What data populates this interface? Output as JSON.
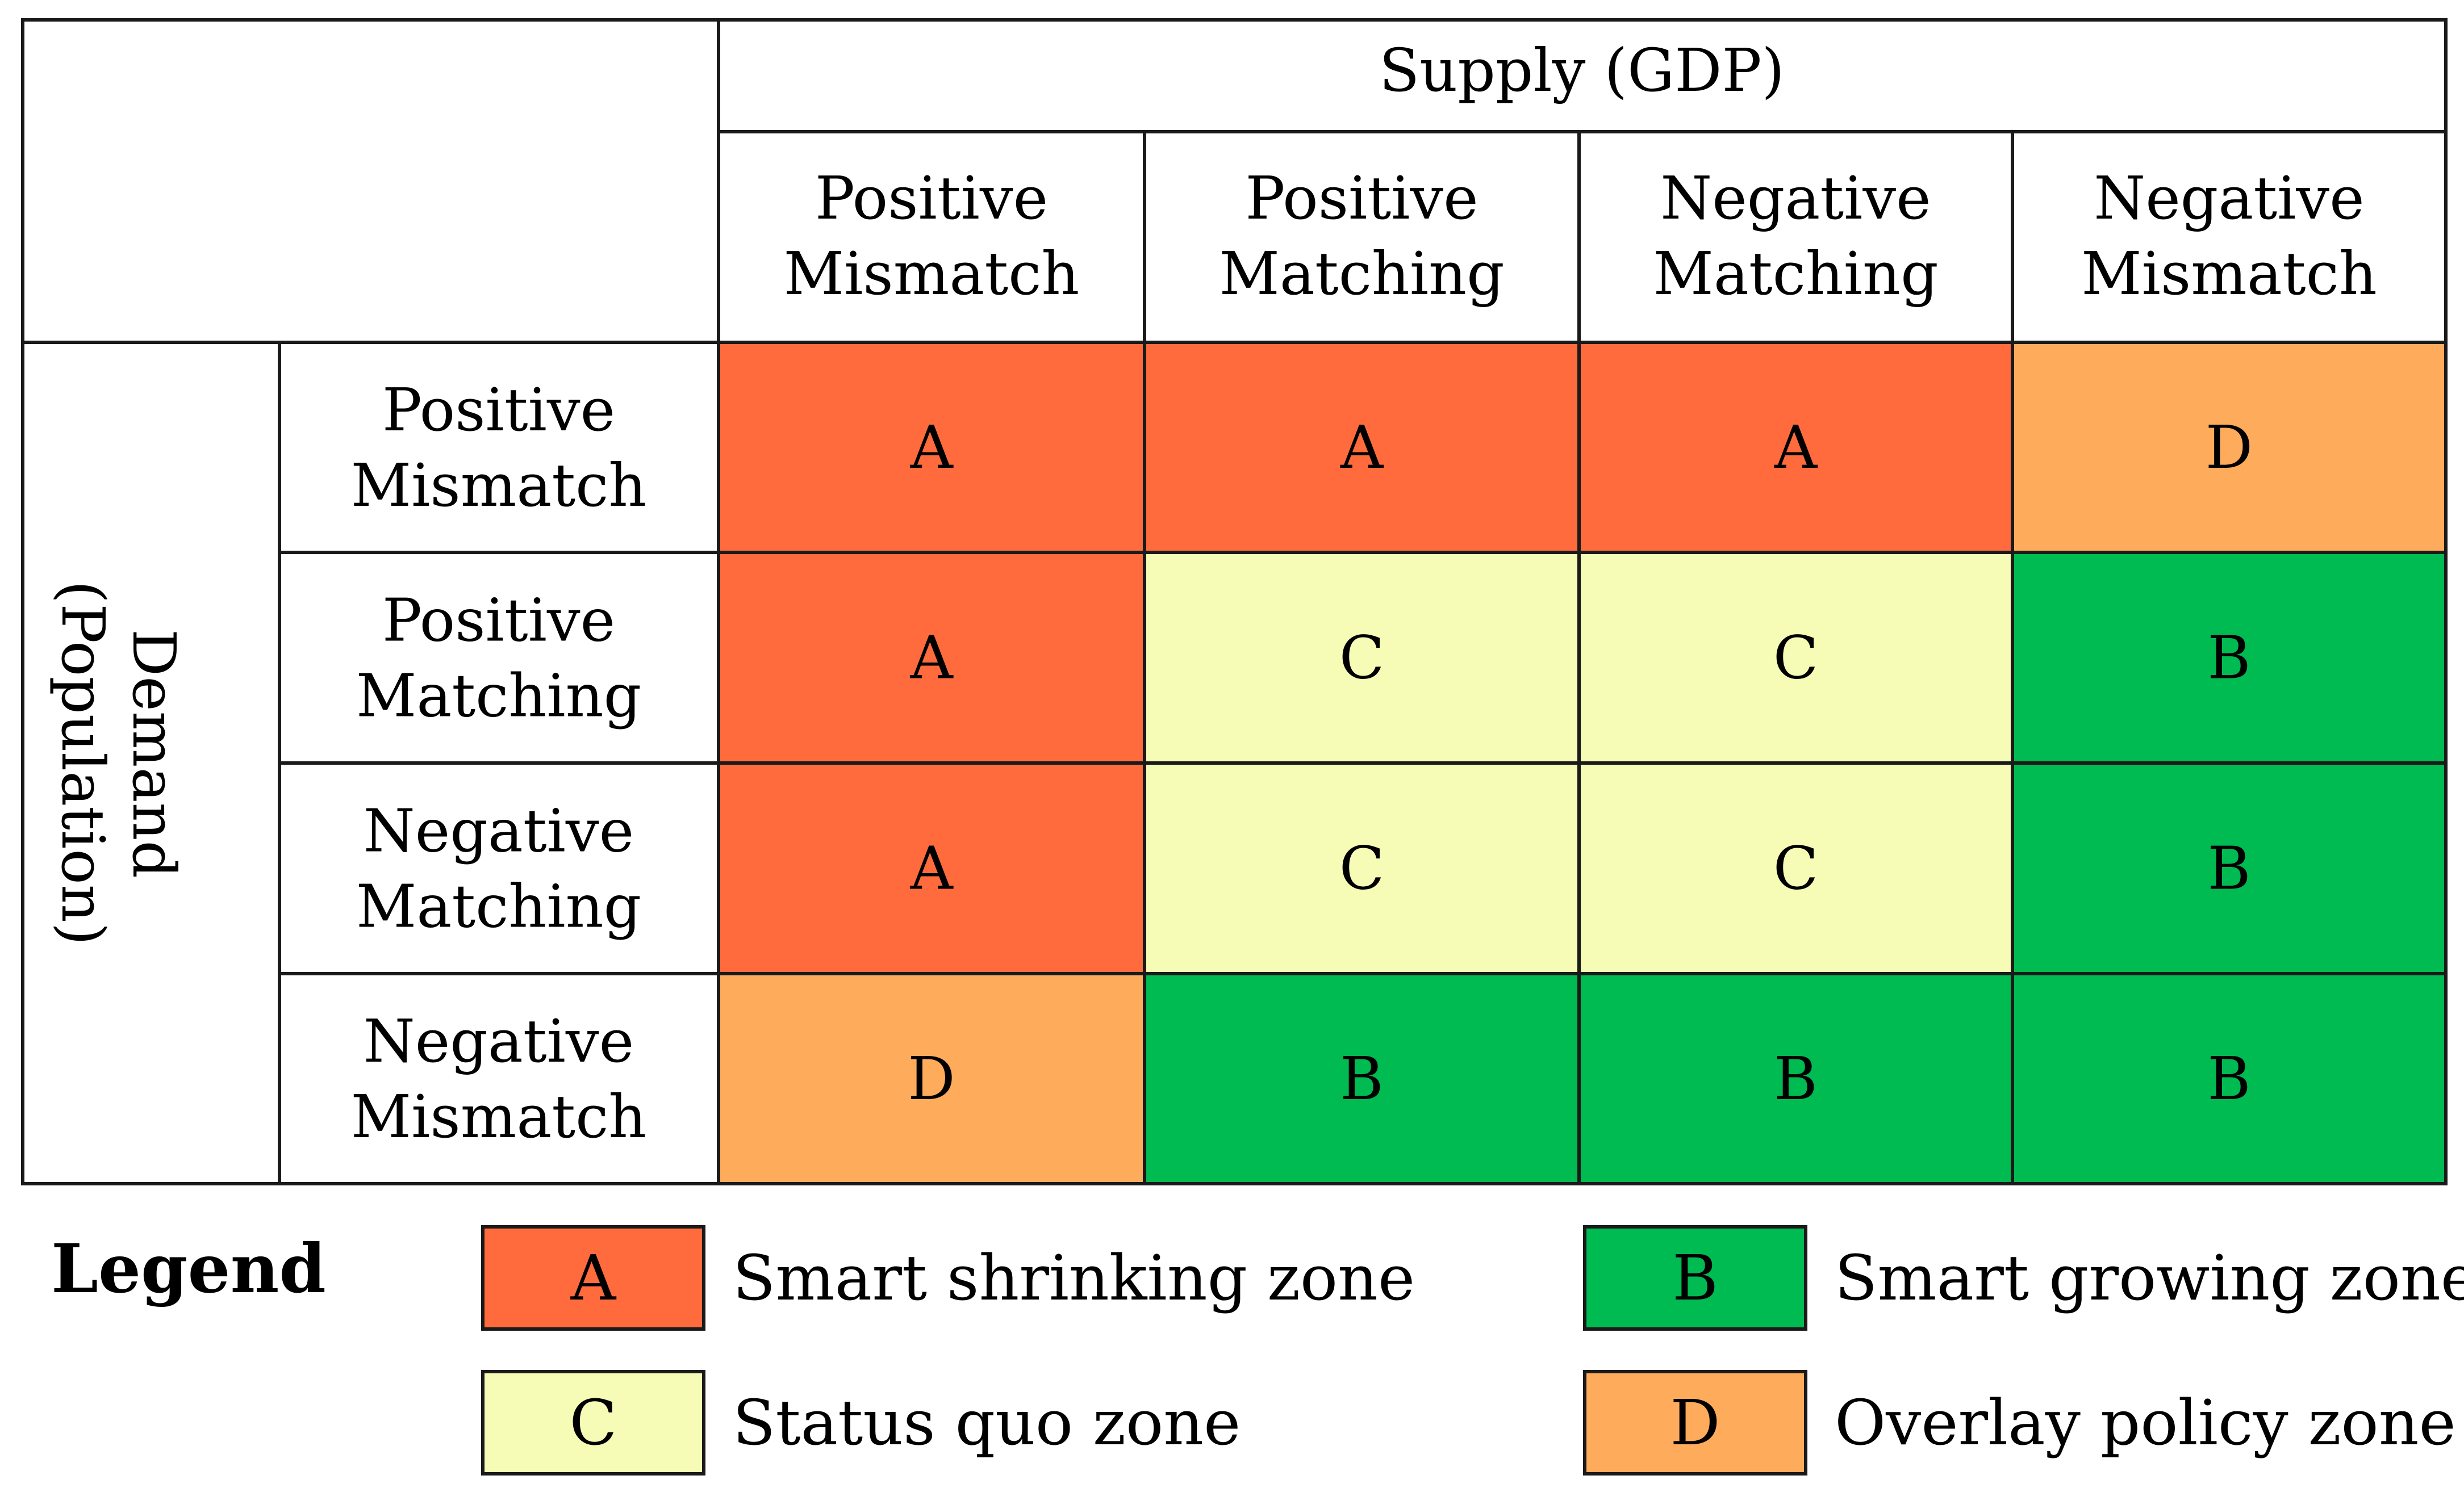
{
  "supply_header": "Supply (GDP)",
  "demand_header": [
    "Demand",
    "(Population)"
  ],
  "columns": [
    [
      "Positive",
      "Mismatch"
    ],
    [
      "Positive",
      "Matching"
    ],
    [
      "Negative",
      "Matching"
    ],
    [
      "Negative",
      "Mismatch"
    ]
  ],
  "rows": [
    [
      "Positive",
      "Mismatch"
    ],
    [
      "Positive",
      "Matching"
    ],
    [
      "Negative",
      "Matching"
    ],
    [
      "Negative",
      "Mismatch"
    ]
  ],
  "grid": [
    [
      "A",
      "A",
      "A",
      "D"
    ],
    [
      "A",
      "C",
      "C",
      "B"
    ],
    [
      "A",
      "C",
      "C",
      "B"
    ],
    [
      "D",
      "B",
      "B",
      "B"
    ]
  ],
  "zone_colors": {
    "A": "#FF6B3D",
    "B": "#00BA52",
    "C": "#F6FBB5",
    "D": "#FEAB5C"
  },
  "legend": {
    "title": "Legend",
    "items": [
      {
        "code": "A",
        "label": "Smart shrinking zone"
      },
      {
        "code": "B",
        "label": "Smart growing zone"
      },
      {
        "code": "C",
        "label": "Status quo zone"
      },
      {
        "code": "D",
        "label": "Overlay policy zone"
      }
    ]
  }
}
